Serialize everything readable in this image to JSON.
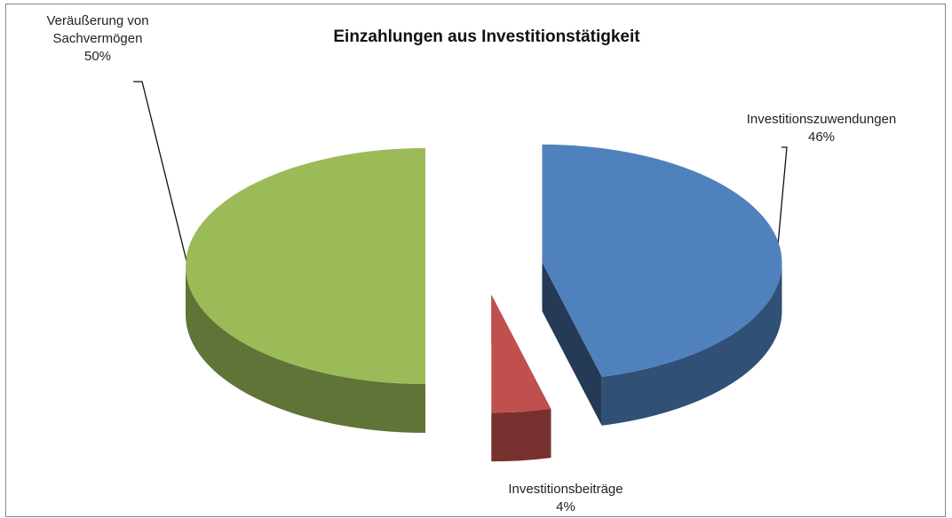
{
  "chart_data": {
    "type": "pie3d",
    "title": "Einzahlungen aus Investitionstätigkeit",
    "categories": [
      "Investitionszuwendungen",
      "Investitionsbeiträge",
      "Veräußerung von Sachvermögen"
    ],
    "values": [
      46,
      4,
      50
    ],
    "value_labels": [
      "46%",
      "4%",
      "50%"
    ],
    "colors": [
      "#4f81bd",
      "#c0504d",
      "#9bbb59"
    ]
  }
}
